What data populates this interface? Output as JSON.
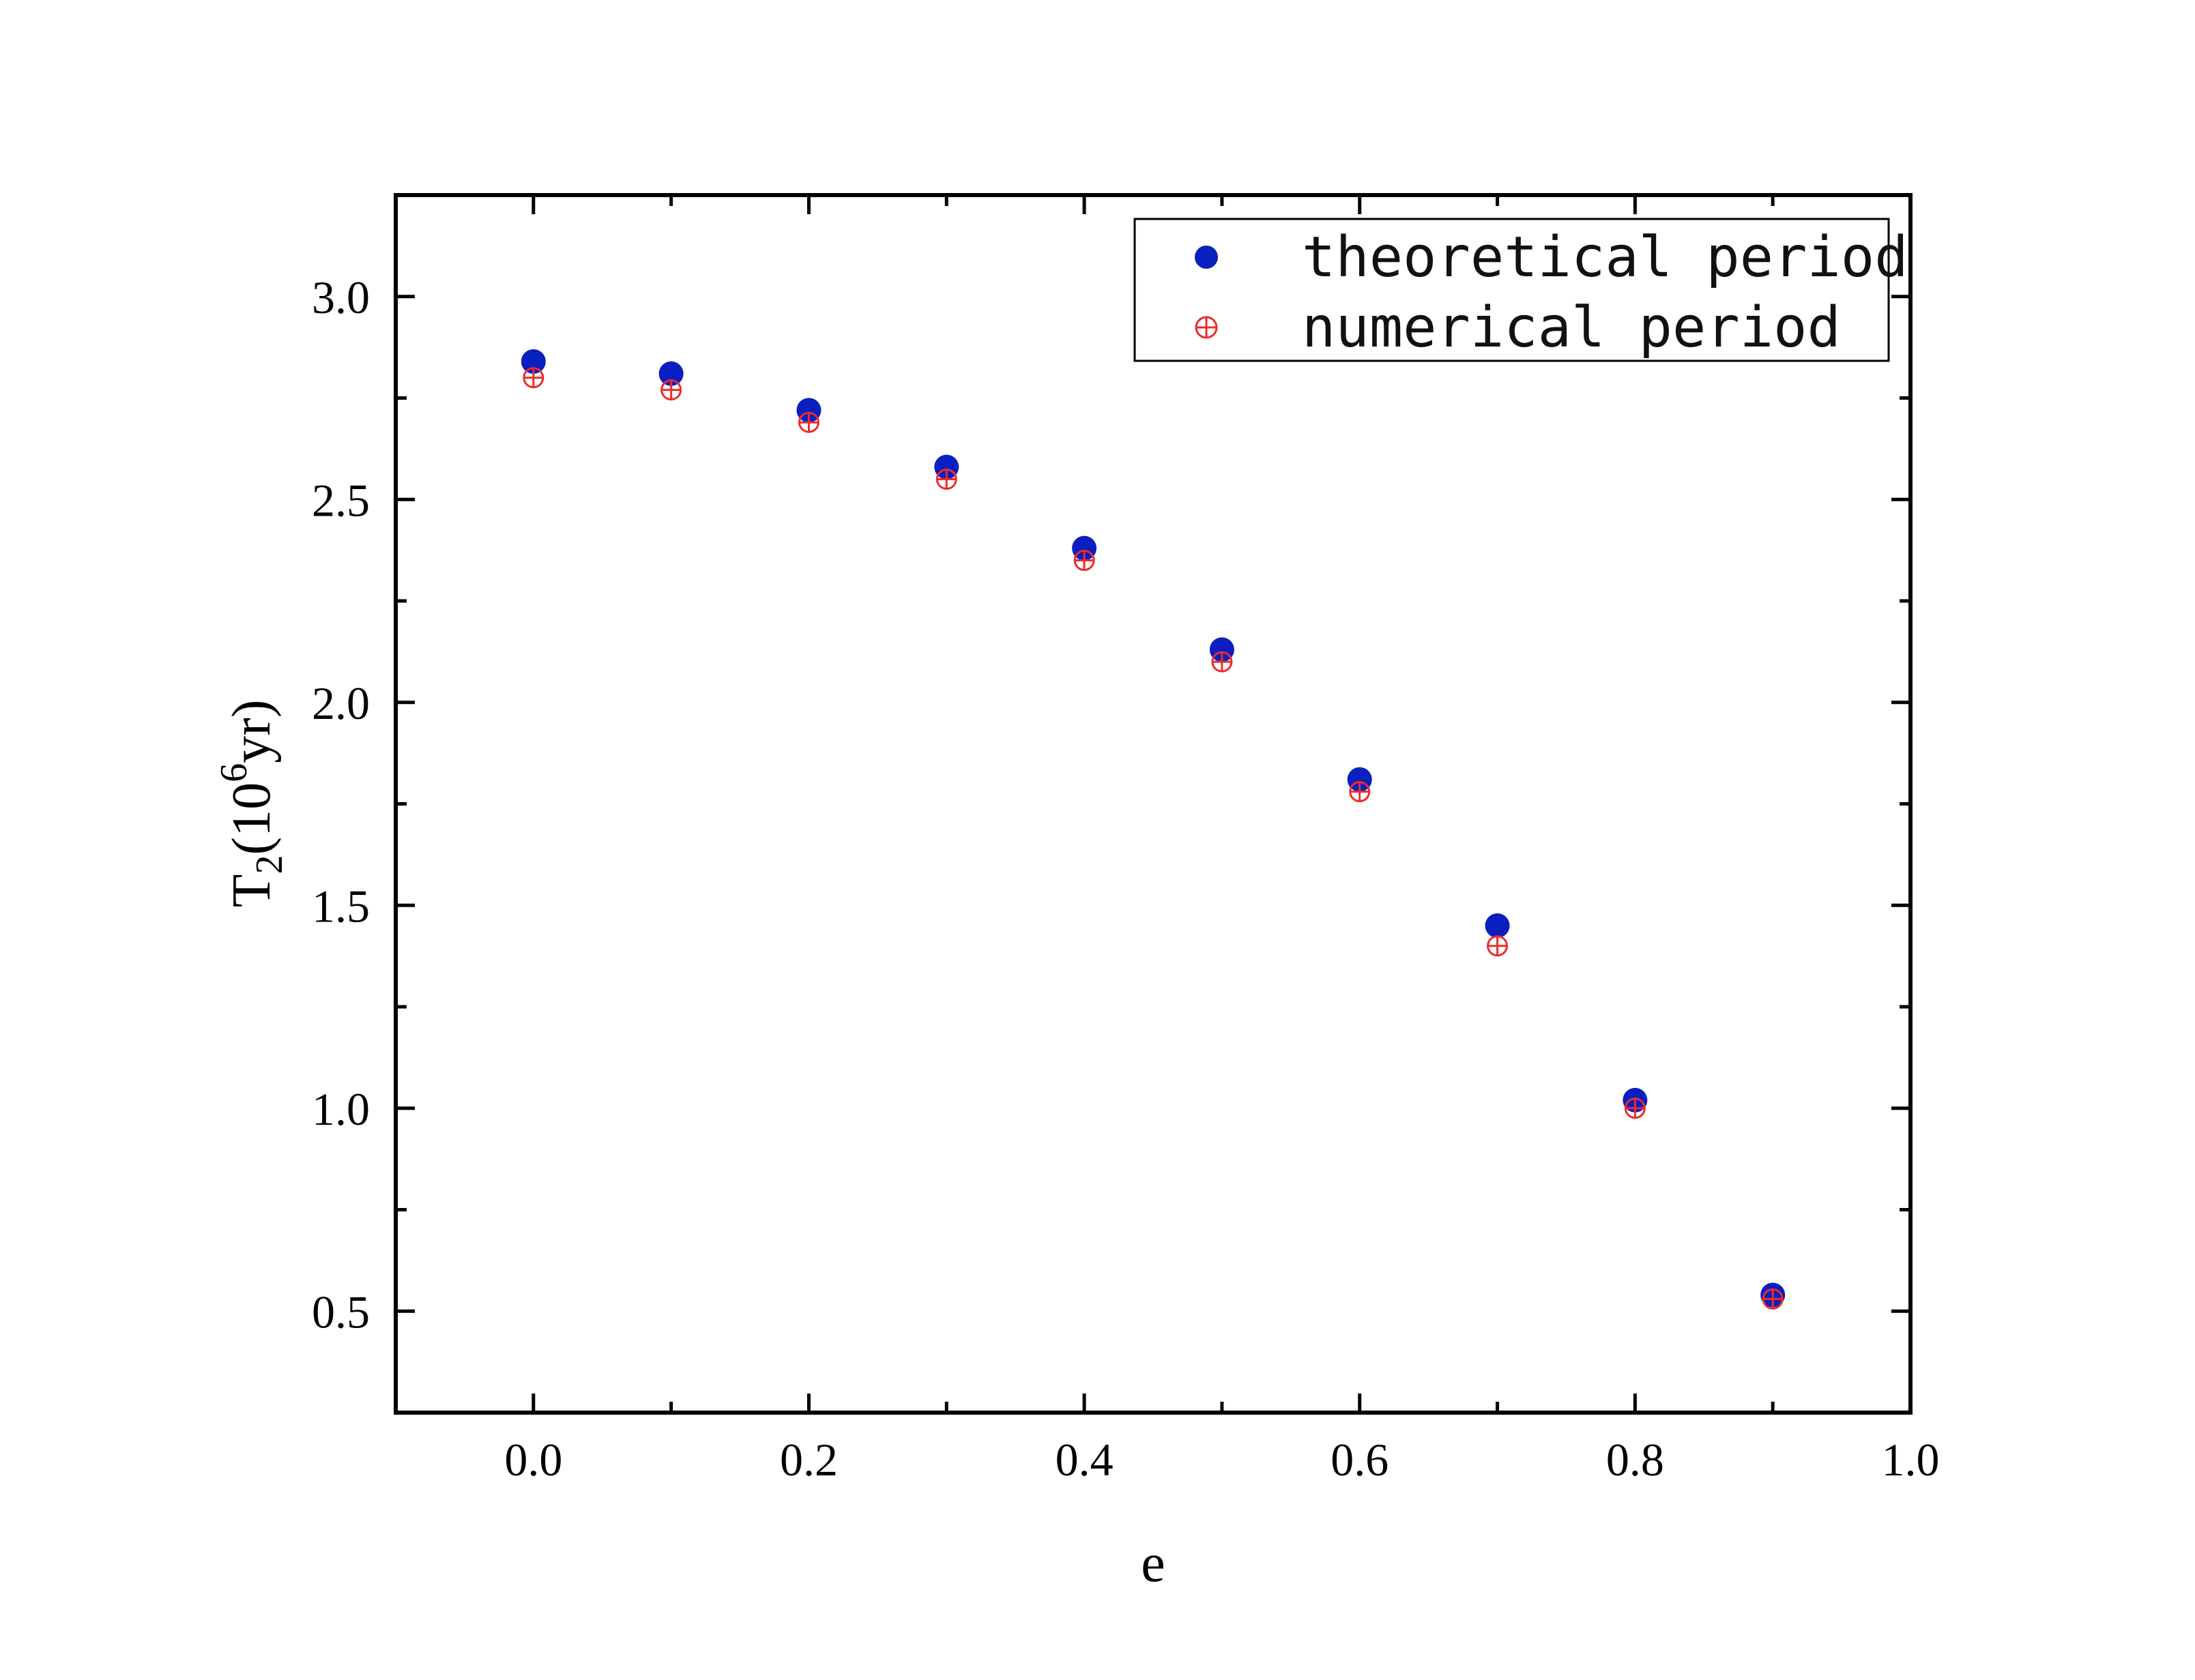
{
  "chart_data": {
    "type": "scatter",
    "xlabel": "e",
    "ylabel": {
      "base": "T",
      "subscript": "2",
      "open": "(10",
      "superscript": "6",
      "unit": "yr)"
    },
    "xlim": [
      -0.1,
      1.0
    ],
    "ylim": [
      0.25,
      3.25
    ],
    "x_ticks": [
      0.0,
      0.2,
      0.4,
      0.6,
      0.8,
      1.0
    ],
    "x_tick_labels": [
      "0.0",
      "0.2",
      "0.4",
      "0.6",
      "0.8",
      "1.0"
    ],
    "y_ticks": [
      0.5,
      1.0,
      1.5,
      2.0,
      2.5,
      3.0
    ],
    "y_tick_labels": [
      "0.5",
      "1.0",
      "1.5",
      "2.0",
      "2.5",
      "3.0"
    ],
    "x_minor_ticks": [
      0.1,
      0.3,
      0.5,
      0.7,
      0.9
    ],
    "y_minor_ticks": [
      0.75,
      1.25,
      1.75,
      2.25,
      2.75
    ],
    "grid": false,
    "legend_position": "top-right",
    "series": [
      {
        "name": "theoretical period",
        "marker": "filled-circle",
        "color": "#0a1fbf",
        "x": [
          0.0,
          0.1,
          0.2,
          0.3,
          0.4,
          0.5,
          0.6,
          0.7,
          0.8,
          0.9
        ],
        "y": [
          2.84,
          2.81,
          2.72,
          2.58,
          2.38,
          2.13,
          1.81,
          1.45,
          1.02,
          0.54
        ]
      },
      {
        "name": "numerical period",
        "marker": "circle-plus",
        "color": "#ee2a2a",
        "x": [
          0.0,
          0.1,
          0.2,
          0.3,
          0.4,
          0.5,
          0.6,
          0.7,
          0.8,
          0.9
        ],
        "y": [
          2.8,
          2.77,
          2.69,
          2.55,
          2.35,
          2.1,
          1.78,
          1.4,
          1.0,
          0.53
        ]
      }
    ]
  }
}
